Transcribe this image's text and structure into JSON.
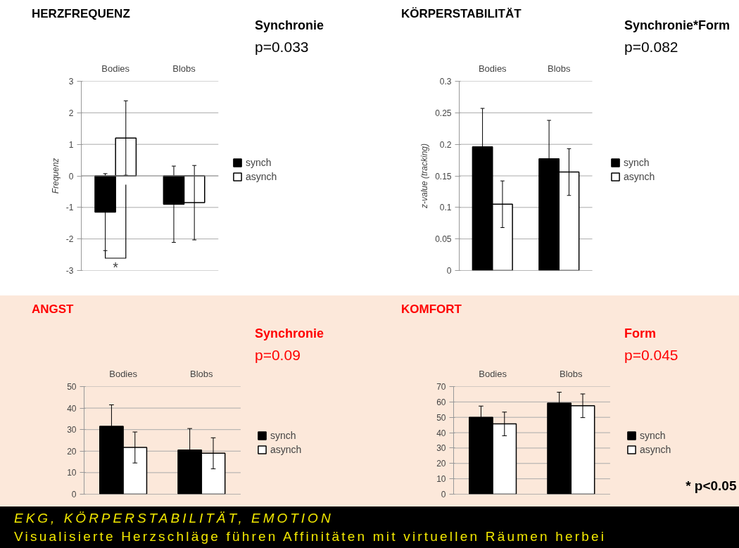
{
  "chart_data": [
    {
      "type": "bar",
      "title": "HERZFREQUENZ",
      "ylabel": "Frequenz",
      "categories": [
        "Bodies",
        "Blobs"
      ],
      "series": [
        {
          "name": "synch",
          "color": "#000000",
          "values": [
            -1.15,
            -0.9
          ],
          "errors": [
            1.22,
            1.21
          ]
        },
        {
          "name": "asynch",
          "color": "#ffffff",
          "values": [
            1.2,
            -0.85
          ],
          "errors": [
            1.18,
            1.18
          ]
        }
      ],
      "ylim": [
        -3,
        3
      ],
      "yticks": [
        -3,
        -2,
        -1,
        0,
        1,
        2,
        3
      ],
      "grid": "y",
      "legend": "right",
      "annotations": [
        "Synchronie",
        "p=0.033",
        "*"
      ]
    },
    {
      "type": "bar",
      "title": "KÖRPERSTABILITÄT",
      "ylabel": "z-value (tracking)",
      "categories": [
        "Bodies",
        "Blobs"
      ],
      "series": [
        {
          "name": "synch",
          "color": "#000000",
          "values": [
            0.196,
            0.177
          ],
          "errors": [
            0.061,
            0.061
          ]
        },
        {
          "name": "asynch",
          "color": "#ffffff",
          "values": [
            0.105,
            0.156
          ],
          "errors": [
            0.037,
            0.037
          ]
        }
      ],
      "ylim": [
        0,
        0.3
      ],
      "yticks": [
        0,
        0.05,
        0.1,
        0.15,
        0.2,
        0.25,
        0.3
      ],
      "grid": "y",
      "legend": "right",
      "annotations": [
        "Synchronie*Form",
        "p=0.082"
      ]
    },
    {
      "type": "bar",
      "title": "ANGST",
      "categories": [
        "Bodies",
        "Blobs"
      ],
      "series": [
        {
          "name": "synch",
          "color": "#000000",
          "values": [
            31.5,
            20.5
          ],
          "errors": [
            10,
            10
          ]
        },
        {
          "name": "asynch",
          "color": "#ffffff",
          "values": [
            21.7,
            19
          ],
          "errors": [
            7.2,
            7.2
          ]
        }
      ],
      "ylim": [
        0,
        50
      ],
      "yticks": [
        0,
        10,
        20,
        30,
        40,
        50
      ],
      "grid": "y",
      "legend": "right",
      "annotations": [
        "Synchronie",
        "p=0.09"
      ]
    },
    {
      "type": "bar",
      "title": "KOMFORT",
      "categories": [
        "Bodies",
        "Blobs"
      ],
      "series": [
        {
          "name": "synch",
          "color": "#000000",
          "values": [
            50,
            59.3
          ],
          "errors": [
            7.3,
            7
          ]
        },
        {
          "name": "asynch",
          "color": "#ffffff",
          "values": [
            45.7,
            57.5
          ],
          "errors": [
            7.7,
            7.7
          ]
        }
      ],
      "ylim": [
        0,
        70
      ],
      "yticks": [
        0,
        10,
        20,
        30,
        40,
        50,
        60,
        70
      ],
      "grid": "y",
      "legend": "right",
      "annotations": [
        "Form",
        "p=0.045",
        "* p<0.05"
      ]
    },
    {
      "type": "other",
      "title": "EKG, KÖRPERSTABILITÄT, EMOTION",
      "subtitle": "Visualisierte Herzschläge führen Affinitäten mit virtuellen Räumen herbei"
    }
  ]
}
